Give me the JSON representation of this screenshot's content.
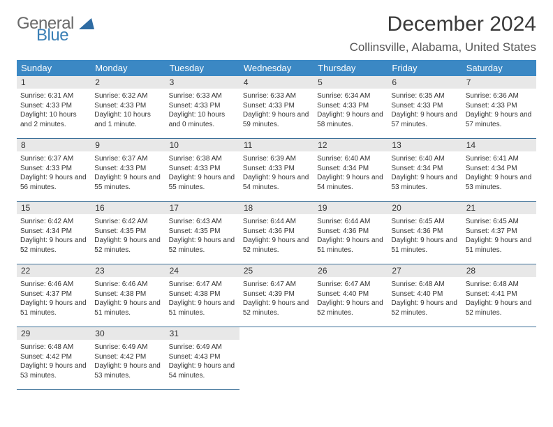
{
  "brand": {
    "word1": "General",
    "word2": "Blue",
    "triangle_color": "#2f6ca3"
  },
  "title": "December 2024",
  "location": "Collinsville, Alabama, United States",
  "colors": {
    "header_bg": "#3b88c4",
    "header_fg": "#ffffff",
    "daybar_bg": "#e8e8e8",
    "rule": "#3b6f98",
    "text": "#333333"
  },
  "weekdays": [
    "Sunday",
    "Monday",
    "Tuesday",
    "Wednesday",
    "Thursday",
    "Friday",
    "Saturday"
  ],
  "weeks": [
    [
      {
        "n": "1",
        "sr": "Sunrise: 6:31 AM",
        "ss": "Sunset: 4:33 PM",
        "dl": "Daylight: 10 hours and 2 minutes."
      },
      {
        "n": "2",
        "sr": "Sunrise: 6:32 AM",
        "ss": "Sunset: 4:33 PM",
        "dl": "Daylight: 10 hours and 1 minute."
      },
      {
        "n": "3",
        "sr": "Sunrise: 6:33 AM",
        "ss": "Sunset: 4:33 PM",
        "dl": "Daylight: 10 hours and 0 minutes."
      },
      {
        "n": "4",
        "sr": "Sunrise: 6:33 AM",
        "ss": "Sunset: 4:33 PM",
        "dl": "Daylight: 9 hours and 59 minutes."
      },
      {
        "n": "5",
        "sr": "Sunrise: 6:34 AM",
        "ss": "Sunset: 4:33 PM",
        "dl": "Daylight: 9 hours and 58 minutes."
      },
      {
        "n": "6",
        "sr": "Sunrise: 6:35 AM",
        "ss": "Sunset: 4:33 PM",
        "dl": "Daylight: 9 hours and 57 minutes."
      },
      {
        "n": "7",
        "sr": "Sunrise: 6:36 AM",
        "ss": "Sunset: 4:33 PM",
        "dl": "Daylight: 9 hours and 57 minutes."
      }
    ],
    [
      {
        "n": "8",
        "sr": "Sunrise: 6:37 AM",
        "ss": "Sunset: 4:33 PM",
        "dl": "Daylight: 9 hours and 56 minutes."
      },
      {
        "n": "9",
        "sr": "Sunrise: 6:37 AM",
        "ss": "Sunset: 4:33 PM",
        "dl": "Daylight: 9 hours and 55 minutes."
      },
      {
        "n": "10",
        "sr": "Sunrise: 6:38 AM",
        "ss": "Sunset: 4:33 PM",
        "dl": "Daylight: 9 hours and 55 minutes."
      },
      {
        "n": "11",
        "sr": "Sunrise: 6:39 AM",
        "ss": "Sunset: 4:33 PM",
        "dl": "Daylight: 9 hours and 54 minutes."
      },
      {
        "n": "12",
        "sr": "Sunrise: 6:40 AM",
        "ss": "Sunset: 4:34 PM",
        "dl": "Daylight: 9 hours and 54 minutes."
      },
      {
        "n": "13",
        "sr": "Sunrise: 6:40 AM",
        "ss": "Sunset: 4:34 PM",
        "dl": "Daylight: 9 hours and 53 minutes."
      },
      {
        "n": "14",
        "sr": "Sunrise: 6:41 AM",
        "ss": "Sunset: 4:34 PM",
        "dl": "Daylight: 9 hours and 53 minutes."
      }
    ],
    [
      {
        "n": "15",
        "sr": "Sunrise: 6:42 AM",
        "ss": "Sunset: 4:34 PM",
        "dl": "Daylight: 9 hours and 52 minutes."
      },
      {
        "n": "16",
        "sr": "Sunrise: 6:42 AM",
        "ss": "Sunset: 4:35 PM",
        "dl": "Daylight: 9 hours and 52 minutes."
      },
      {
        "n": "17",
        "sr": "Sunrise: 6:43 AM",
        "ss": "Sunset: 4:35 PM",
        "dl": "Daylight: 9 hours and 52 minutes."
      },
      {
        "n": "18",
        "sr": "Sunrise: 6:44 AM",
        "ss": "Sunset: 4:36 PM",
        "dl": "Daylight: 9 hours and 52 minutes."
      },
      {
        "n": "19",
        "sr": "Sunrise: 6:44 AM",
        "ss": "Sunset: 4:36 PM",
        "dl": "Daylight: 9 hours and 51 minutes."
      },
      {
        "n": "20",
        "sr": "Sunrise: 6:45 AM",
        "ss": "Sunset: 4:36 PM",
        "dl": "Daylight: 9 hours and 51 minutes."
      },
      {
        "n": "21",
        "sr": "Sunrise: 6:45 AM",
        "ss": "Sunset: 4:37 PM",
        "dl": "Daylight: 9 hours and 51 minutes."
      }
    ],
    [
      {
        "n": "22",
        "sr": "Sunrise: 6:46 AM",
        "ss": "Sunset: 4:37 PM",
        "dl": "Daylight: 9 hours and 51 minutes."
      },
      {
        "n": "23",
        "sr": "Sunrise: 6:46 AM",
        "ss": "Sunset: 4:38 PM",
        "dl": "Daylight: 9 hours and 51 minutes."
      },
      {
        "n": "24",
        "sr": "Sunrise: 6:47 AM",
        "ss": "Sunset: 4:38 PM",
        "dl": "Daylight: 9 hours and 51 minutes."
      },
      {
        "n": "25",
        "sr": "Sunrise: 6:47 AM",
        "ss": "Sunset: 4:39 PM",
        "dl": "Daylight: 9 hours and 52 minutes."
      },
      {
        "n": "26",
        "sr": "Sunrise: 6:47 AM",
        "ss": "Sunset: 4:40 PM",
        "dl": "Daylight: 9 hours and 52 minutes."
      },
      {
        "n": "27",
        "sr": "Sunrise: 6:48 AM",
        "ss": "Sunset: 4:40 PM",
        "dl": "Daylight: 9 hours and 52 minutes."
      },
      {
        "n": "28",
        "sr": "Sunrise: 6:48 AM",
        "ss": "Sunset: 4:41 PM",
        "dl": "Daylight: 9 hours and 52 minutes."
      }
    ],
    [
      {
        "n": "29",
        "sr": "Sunrise: 6:48 AM",
        "ss": "Sunset: 4:42 PM",
        "dl": "Daylight: 9 hours and 53 minutes."
      },
      {
        "n": "30",
        "sr": "Sunrise: 6:49 AM",
        "ss": "Sunset: 4:42 PM",
        "dl": "Daylight: 9 hours and 53 minutes."
      },
      {
        "n": "31",
        "sr": "Sunrise: 6:49 AM",
        "ss": "Sunset: 4:43 PM",
        "dl": "Daylight: 9 hours and 54 minutes."
      },
      null,
      null,
      null,
      null
    ]
  ]
}
